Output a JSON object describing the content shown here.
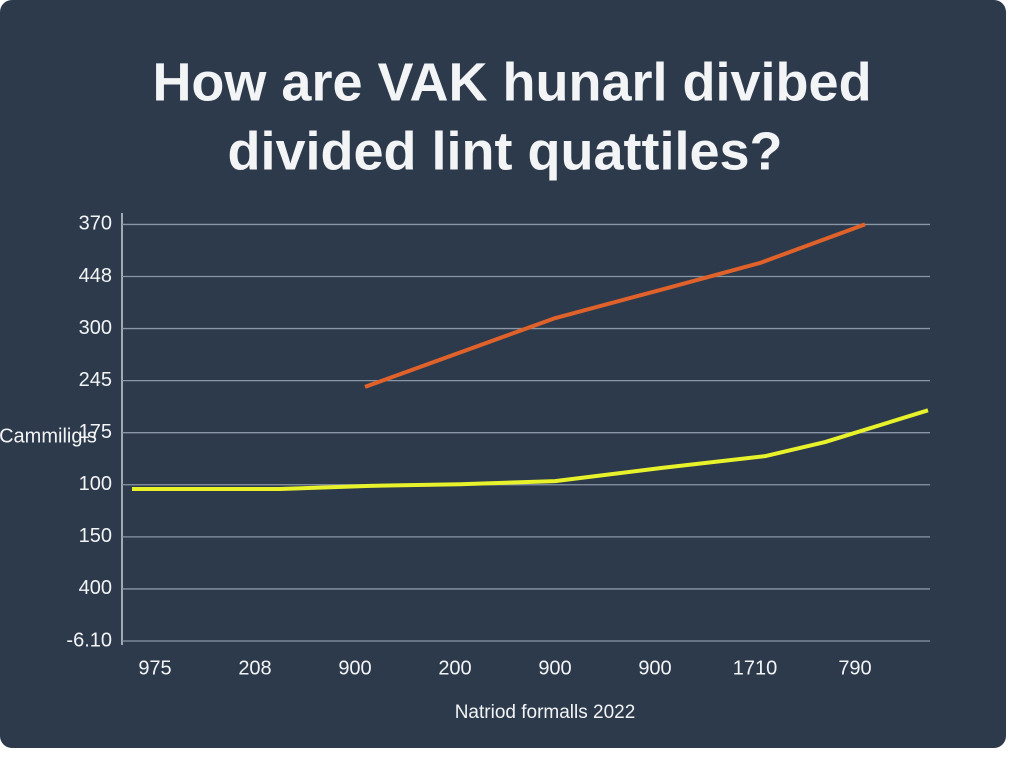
{
  "chart_data": {
    "type": "line",
    "title": [
      "How are VAK hunarl divibed",
      "divided lint quattiles?"
    ],
    "y_label": "Cammiligis",
    "x_label": "Natriod formalls 2022",
    "xlim": [
      -0.33,
      7.75
    ],
    "xticks": [
      {
        "value": 0,
        "label": "975"
      },
      {
        "value": 1,
        "label": "208"
      },
      {
        "value": 2,
        "label": "900"
      },
      {
        "value": 3,
        "label": "200"
      },
      {
        "value": 4,
        "label": "900"
      },
      {
        "value": 5,
        "label": "900"
      },
      {
        "value": 6,
        "label": "1710"
      },
      {
        "value": 7,
        "label": "790"
      }
    ],
    "ylim": [
      0,
      8.2
    ],
    "yticks": [
      {
        "value": 0,
        "label": "-6.10"
      },
      {
        "value": 1,
        "label": "400"
      },
      {
        "value": 2,
        "label": "150"
      },
      {
        "value": 3,
        "label": "100"
      },
      {
        "value": 4,
        "label": "175"
      },
      {
        "value": 5,
        "label": "245"
      },
      {
        "value": 6,
        "label": "300"
      },
      {
        "value": 7,
        "label": "448"
      },
      {
        "value": 8,
        "label": "370"
      }
    ],
    "grid": true,
    "series": [
      {
        "color": "#e8f22a",
        "x": [
          -0.23,
          1.25,
          2.15,
          3.05,
          4.0,
          5.05,
          6.1,
          6.7,
          7.73
        ],
        "values": [
          2.92,
          2.92,
          2.98,
          3.01,
          3.07,
          3.32,
          3.55,
          3.82,
          4.43
        ]
      },
      {
        "color": "#e0622a",
        "x": [
          2.1,
          4.0,
          5.05,
          6.05,
          7.1
        ],
        "values": [
          4.88,
          6.2,
          6.74,
          7.26,
          8.0
        ]
      }
    ]
  }
}
